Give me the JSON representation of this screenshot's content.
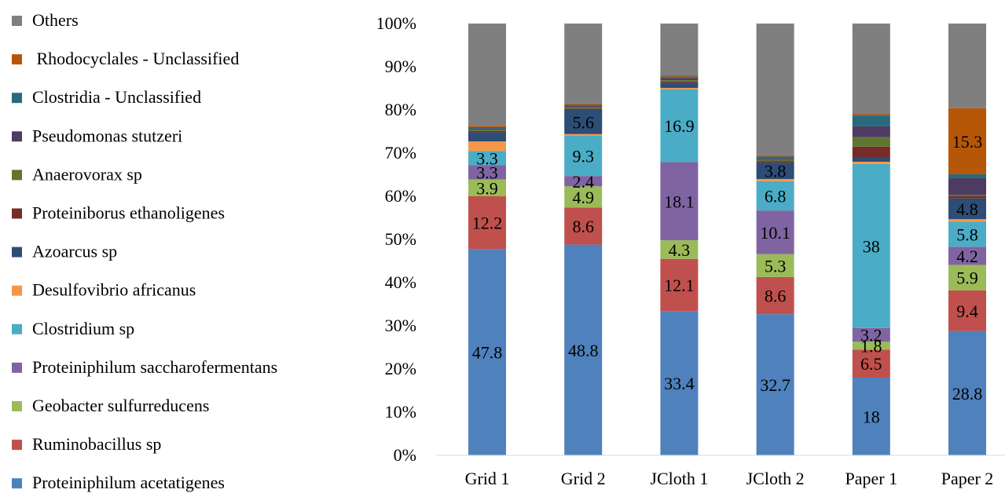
{
  "chart_data": {
    "type": "bar",
    "stacked": true,
    "normalized": true,
    "categories": [
      "Grid 1",
      "Grid 2",
      "JCloth 1",
      "JCloth 2",
      "Paper 1",
      "Paper 2"
    ],
    "yticks": [
      "0%",
      "10%",
      "20%",
      "30%",
      "40%",
      "50%",
      "60%",
      "70%",
      "80%",
      "90%",
      "100%"
    ],
    "ylim": [
      0,
      100
    ],
    "grid": false,
    "legend_position": "left",
    "series": [
      {
        "name": "Proteiniphilum acetatigenes",
        "color": "#4f81bd",
        "values": [
          47.8,
          48.8,
          33.4,
          32.7,
          18,
          28.8
        ],
        "labels": [
          "47.8",
          "48.8",
          "33.4",
          "32.7",
          "18",
          "28.8"
        ]
      },
      {
        "name": "Ruminobacillus sp",
        "color": "#c0504d",
        "values": [
          12.2,
          8.6,
          12.1,
          8.6,
          6.5,
          9.4
        ],
        "labels": [
          "12.2",
          "8.6",
          "12.1",
          "8.6",
          "6.5",
          "9.4"
        ]
      },
      {
        "name": "Geobacter sulfurreducens",
        "color": "#9bbb59",
        "values": [
          3.9,
          4.9,
          4.3,
          5.3,
          1.8,
          5.9
        ],
        "labels": [
          "3.9",
          "4.9",
          "4.3",
          "5.3",
          "1.8",
          "5.9"
        ]
      },
      {
        "name": "Proteiniphilum saccharofermentans",
        "color": "#8064a2",
        "values": [
          3.3,
          2.4,
          18.1,
          10.1,
          3.2,
          4.2
        ],
        "labels": [
          "3.3",
          "2.4",
          "18.1",
          "10.1",
          "3.2",
          "4.2"
        ]
      },
      {
        "name": "Clostridium sp",
        "color": "#4bacc6",
        "values": [
          3.3,
          9.3,
          16.9,
          6.8,
          38,
          5.8
        ],
        "labels": [
          "3.3",
          "9.3",
          "16.9",
          "6.8",
          "38",
          "5.8"
        ]
      },
      {
        "name": "Desulfovibrio africanus",
        "color": "#f79646",
        "values": [
          2.2,
          0.4,
          0.3,
          0.5,
          0.5,
          0.6
        ],
        "labels": [
          "",
          "",
          "",
          "",
          "",
          ""
        ]
      },
      {
        "name": "Azoarcus sp",
        "color": "#2c4d75",
        "values": [
          2.1,
          5.6,
          1.2,
          3.8,
          1.0,
          4.8
        ],
        "labels": [
          "",
          "5.6",
          "",
          "3.8",
          "",
          "4.8"
        ]
      },
      {
        "name": "Proteiniborus ethanoligenes",
        "color": "#772c2a",
        "values": [
          0.3,
          0.3,
          0.3,
          0.3,
          2.5,
          0.5
        ],
        "labels": [
          "",
          "",
          "",
          "",
          "",
          ""
        ]
      },
      {
        "name": "Anaerovorax sp",
        "color": "#5f7530",
        "values": [
          0.3,
          0.3,
          0.3,
          0.3,
          2.2,
          0.3
        ],
        "labels": [
          "",
          "",
          "",
          "",
          "",
          ""
        ]
      },
      {
        "name": "Pseudomonas stutzeri",
        "color": "#4d3b62",
        "values": [
          0.3,
          0.3,
          0.5,
          0.3,
          2.5,
          4.0
        ],
        "labels": [
          "",
          "",
          "",
          "",
          "",
          ""
        ]
      },
      {
        "name": "Clostridia - Unclassified",
        "color": "#276a7c",
        "values": [
          0.3,
          0.3,
          0.3,
          0.5,
          2.5,
          0.8
        ],
        "labels": [
          "",
          "",
          "",
          "",
          "",
          ""
        ]
      },
      {
        "name": "Rhodocyclales - Unclassified",
        "color": "#b65708",
        "values": [
          0.3,
          0.3,
          0.3,
          0.3,
          0.3,
          15.3
        ],
        "labels": [
          "",
          "",
          "",
          "",
          "",
          "15.3"
        ]
      },
      {
        "name": "Others",
        "color": "#7f7f7f",
        "values": [
          23.7,
          18.5,
          12.0,
          30.5,
          21.0,
          19.6
        ],
        "labels": [
          "",
          "",
          "",
          "",
          "",
          ""
        ]
      }
    ],
    "legend_order": [
      "Others",
      " Rhodocyclales - Unclassified",
      "Clostridia - Unclassified",
      "Pseudomonas stutzeri",
      "Anaerovorax sp",
      "Proteiniborus ethanoligenes",
      "Azoarcus sp",
      "Desulfovibrio africanus",
      "Clostridium sp",
      "Proteiniphilum saccharofermentans",
      "Geobacter sulfurreducens",
      "Ruminobacillus sp",
      "Proteiniphilum acetatigenes"
    ]
  }
}
